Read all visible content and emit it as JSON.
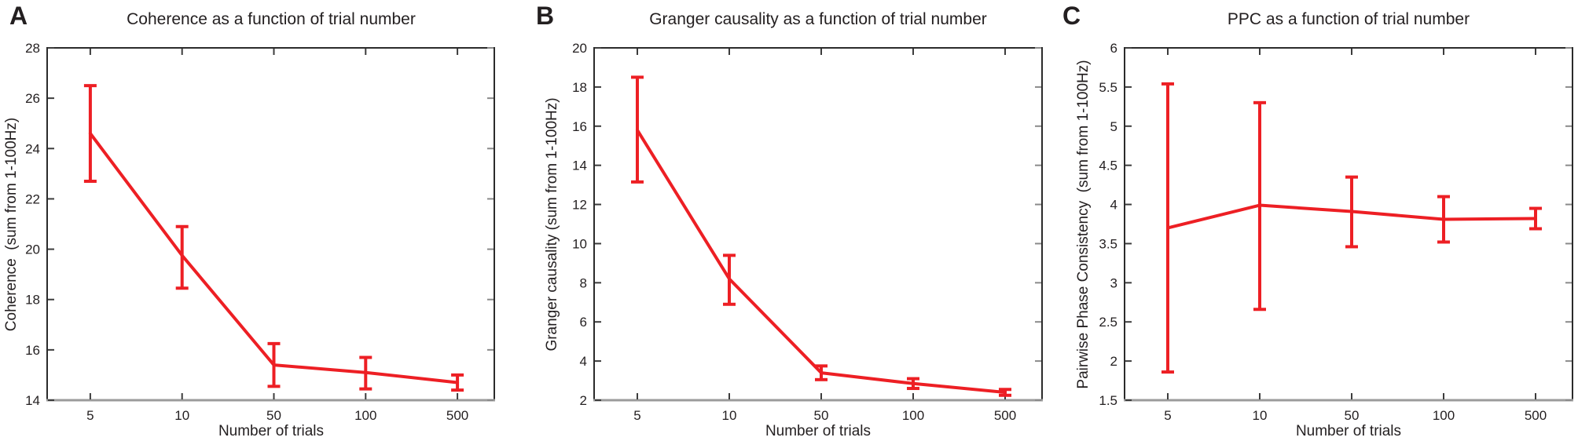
{
  "figure": {
    "accent_color": "#ED1F24",
    "axis_dark_color": "#2b2b2b",
    "axis_bottom_color": "#9b9b9b",
    "text_color": "#231f20"
  },
  "chart_data": [
    {
      "type": "line",
      "panel_label": "A",
      "title": "Coherence as a function of trial number",
      "xlabel": "Number of trials",
      "ylabel": "Coherence  (sum from 1-100Hz)",
      "categories": [
        "5",
        "10",
        "50",
        "100",
        "500"
      ],
      "x_spacing": "categorical-even",
      "series": [
        {
          "name": "Coherence",
          "means": [
            24.6,
            19.75,
            15.4,
            15.1,
            14.7
          ],
          "err_low": [
            22.7,
            18.45,
            14.55,
            14.45,
            14.4
          ],
          "err_high": [
            26.5,
            20.9,
            16.25,
            15.7,
            15.0
          ]
        }
      ],
      "ylim": [
        14,
        28
      ],
      "ytick_step": 2,
      "grid": false,
      "legend": null,
      "line_color": "#ED1F24"
    },
    {
      "type": "line",
      "panel_label": "B",
      "title": "Granger causality as a function of trial number",
      "xlabel": "Number of trials",
      "ylabel": "Granger causality (sum from 1-100Hz)",
      "categories": [
        "5",
        "10",
        "50",
        "100",
        "500"
      ],
      "x_spacing": "categorical-even",
      "series": [
        {
          "name": "Granger causality",
          "means": [
            15.8,
            8.2,
            3.4,
            2.85,
            2.4
          ],
          "err_low": [
            13.15,
            6.9,
            3.05,
            2.6,
            2.25
          ],
          "err_high": [
            18.5,
            9.4,
            3.75,
            3.1,
            2.55
          ]
        }
      ],
      "ylim": [
        2,
        20
      ],
      "ytick_step": 2,
      "grid": false,
      "legend": null,
      "line_color": "#ED1F24"
    },
    {
      "type": "line",
      "panel_label": "C",
      "title": "PPC as a function of trial number",
      "xlabel": "Number of trials",
      "ylabel": "Pairwise Phase Consistency  (sum from 1-100Hz)",
      "categories": [
        "5",
        "10",
        "50",
        "100",
        "500"
      ],
      "x_spacing": "categorical-even",
      "series": [
        {
          "name": "Pairwise Phase Consistency",
          "means": [
            3.7,
            3.99,
            3.91,
            3.81,
            3.82
          ],
          "err_low": [
            1.86,
            2.66,
            3.46,
            3.52,
            3.69
          ],
          "err_high": [
            5.54,
            5.3,
            4.35,
            4.1,
            3.95
          ]
        }
      ],
      "ylim": [
        1.5,
        6
      ],
      "ytick_step": 0.5,
      "grid": false,
      "legend": null,
      "line_color": "#ED1F24"
    }
  ]
}
